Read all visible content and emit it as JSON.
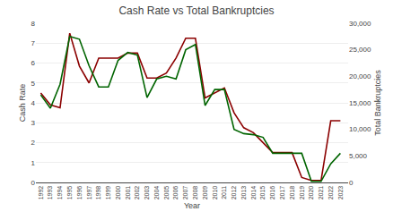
{
  "chart_data": {
    "type": "line",
    "title": "Cash Rate vs Total Bankruptcies",
    "xlabel": "Year",
    "ylabel": "Cash Rate",
    "y2label": "Total Bankruptcies",
    "x": [
      1992,
      1993,
      1994,
      1995,
      1996,
      1997,
      1998,
      1999,
      2000,
      2001,
      2002,
      2003,
      2004,
      2005,
      2006,
      2007,
      2008,
      2009,
      2010,
      2011,
      2012,
      2013,
      2014,
      2015,
      2016,
      2017,
      2018,
      2019,
      2020,
      2021,
      2022,
      2023
    ],
    "series": [
      {
        "color": "#006400",
        "axis": "y2",
        "values": [
          16500,
          14000,
          18500,
          27500,
          27000,
          22000,
          18000,
          18000,
          23000,
          24500,
          24000,
          16000,
          19500,
          20000,
          19500,
          25000,
          26000,
          14500,
          17500,
          17500,
          10000,
          9200,
          9000,
          8500,
          5500,
          5500,
          5500,
          5500,
          200,
          200,
          3500,
          5500
        ]
      },
      {
        "color": "#8B0000",
        "values": [
          4.5,
          3.9,
          3.75,
          7.5,
          5.85,
          5.0,
          6.25,
          6.25,
          6.25,
          6.5,
          6.5,
          5.25,
          5.25,
          5.5,
          6.25,
          7.25,
          7.25,
          4.25,
          4.5,
          4.75,
          3.5,
          2.75,
          2.5,
          2.0,
          1.5,
          1.5,
          1.5,
          0.25,
          0.1,
          0.1,
          3.1,
          3.1
        ]
      }
    ],
    "xlim": [
      1991.5,
      2023.8
    ],
    "xticks": [
      1992,
      1993,
      1994,
      1995,
      1996,
      1997,
      1998,
      1999,
      2000,
      2001,
      2002,
      2003,
      2004,
      2005,
      2006,
      2007,
      2008,
      2009,
      2010,
      2011,
      2012,
      2013,
      2014,
      2015,
      2016,
      2017,
      2018,
      2019,
      2020,
      2021,
      2022,
      2023
    ],
    "ylim": [
      0,
      8
    ],
    "yticks": [
      0,
      1,
      2,
      3,
      4,
      5,
      6,
      7,
      8
    ],
    "y2lim": [
      0,
      30000
    ],
    "y2ticks": [
      0,
      {
        "value": 5000,
        "label": "5,000"
      },
      {
        "value": 10000,
        "label": "10,000"
      },
      {
        "value": 15000,
        "label": "15,000"
      },
      {
        "value": 20000,
        "label": "20,000"
      },
      {
        "value": 25000,
        "label": "25,000"
      },
      {
        "value": 30000,
        "label": "30,000"
      }
    ],
    "grid": true
  }
}
